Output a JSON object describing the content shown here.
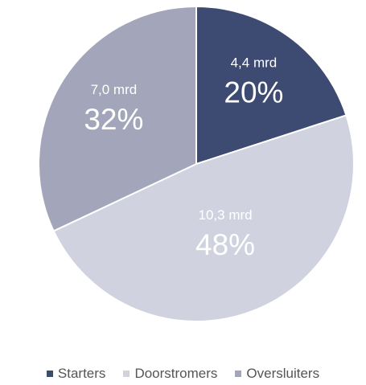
{
  "chart_data": {
    "type": "pie",
    "start_angle_deg": 0,
    "direction": "clockwise",
    "legend_position": "bottom",
    "slices": [
      {
        "label": "Starters",
        "percent": 20,
        "percent_label": "20%",
        "amount_label": "4,4 mrd",
        "color": "#3d4a72"
      },
      {
        "label": "Doorstromers",
        "percent": 48,
        "percent_label": "48%",
        "amount_label": "10,3 mrd",
        "color": "#d0d3df"
      },
      {
        "label": "Oversluiters",
        "percent": 32,
        "percent_label": "32%",
        "amount_label": "7,0 mrd",
        "color": "#a3a6bb"
      }
    ]
  }
}
